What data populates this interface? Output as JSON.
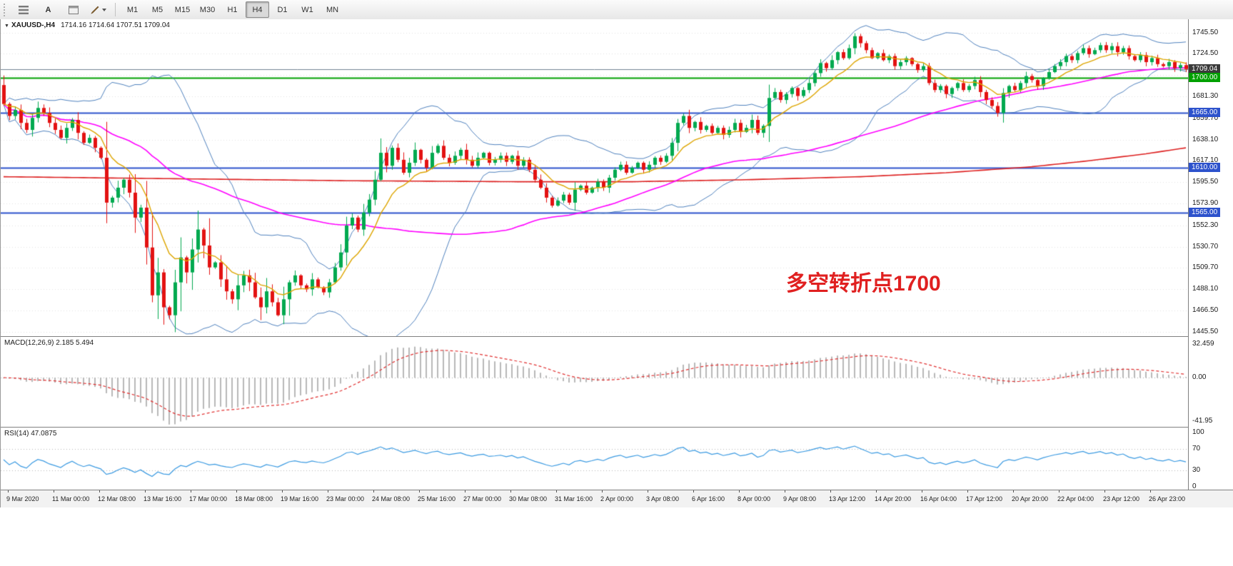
{
  "toolbar": {
    "cursor_label": "A",
    "timeframes": [
      "M1",
      "M5",
      "M15",
      "M30",
      "H1",
      "H4",
      "D1",
      "W1",
      "MN"
    ],
    "active_timeframe": "H4"
  },
  "chart": {
    "symbol_caret": "▼",
    "symbol": "XAUUSD-,H4",
    "ohlc": "1714.16 1714.64 1707.51 1709.04",
    "annotation": {
      "text": "多空转折点1700",
      "color": "#e02020"
    },
    "price_axis": {
      "labels": [
        "1745.50",
        "1724.50",
        "1702.90",
        "1681.30",
        "1659.70",
        "1638.10",
        "1617.10",
        "1595.50",
        "1573.90",
        "1552.30",
        "1530.70",
        "1509.70",
        "1488.10",
        "1466.50",
        "1445.50"
      ]
    },
    "tags": [
      {
        "text": "1709.04",
        "price": 1709.04,
        "bg": "#3a3a3a"
      },
      {
        "text": "1700.00",
        "price": 1700.0,
        "bg": "#00a000"
      },
      {
        "text": "1665.00",
        "price": 1665.0,
        "bg": "#2d52cc"
      },
      {
        "text": "1610.00",
        "price": 1610.0,
        "bg": "#2d52cc"
      },
      {
        "text": "1565.00",
        "price": 1565.0,
        "bg": "#2d52cc"
      }
    ],
    "hlines": [
      {
        "price": 1709.04,
        "color": "#708090",
        "width": 1
      },
      {
        "price": 1700.0,
        "color": "#00a000",
        "width": 2
      },
      {
        "price": 1665.0,
        "color": "#2d52cc",
        "width": 2
      },
      {
        "price": 1610.0,
        "color": "#2d52cc",
        "width": 2
      },
      {
        "price": 1565.0,
        "color": "#2d52cc",
        "width": 2
      }
    ],
    "grid_color": "#e3e3e3"
  },
  "macd": {
    "label": "MACD(12,26,9) 2.185 5.494",
    "axis": [
      "32.459",
      "0.00",
      "-41.95"
    ],
    "axis_values": [
      32.459,
      0,
      -41.95
    ],
    "hist_color": "#b8b8b8",
    "signal_color": "#e03030"
  },
  "rsi": {
    "label": "RSI(14) 47.0875",
    "axis": [
      "100",
      "70",
      "30",
      "0"
    ],
    "axis_values": [
      100,
      70,
      30,
      0
    ],
    "levels": [
      70,
      30
    ],
    "line_color": "#3b9ae1"
  },
  "time_axis": {
    "labels": [
      "9 Mar 2020",
      "11 Mar 00:00",
      "12 Mar 08:00",
      "13 Mar 16:00",
      "17 Mar 00:00",
      "18 Mar 08:00",
      "19 Mar 16:00",
      "23 Mar 00:00",
      "24 Mar 08:00",
      "25 Mar 16:00",
      "27 Mar 00:00",
      "30 Mar 08:00",
      "31 Mar 16:00",
      "2 Apr 00:00",
      "3 Apr 08:00",
      "6 Apr 16:00",
      "8 Apr 00:00",
      "9 Apr 08:00",
      "13 Apr 12:00",
      "14 Apr 20:00",
      "16 Apr 04:00",
      "17 Apr 12:00",
      "20 Apr 20:00",
      "22 Apr 04:00",
      "23 Apr 12:00",
      "26 Apr 23:00"
    ]
  },
  "chart_data": {
    "type": "candlestick",
    "symbol": "XAUUSD",
    "timeframe": "H4",
    "price_range": [
      1441,
      1759
    ],
    "first_open": 1693,
    "up_color": "#00a94f",
    "down_color": "#e31212",
    "wick_boost": [
      [
        17,
        24,
        1.5
      ],
      [
        25,
        52,
        2.2
      ]
    ],
    "closes": [
      1674,
      1662,
      1668,
      1655,
      1648,
      1660,
      1670,
      1665,
      1655,
      1648,
      1640,
      1650,
      1658,
      1645,
      1635,
      1640,
      1630,
      1620,
      1575,
      1580,
      1590,
      1598,
      1585,
      1560,
      1570,
      1530,
      1482,
      1505,
      1470,
      1462,
      1495,
      1520,
      1505,
      1528,
      1548,
      1532,
      1510,
      1515,
      1498,
      1486,
      1478,
      1492,
      1502,
      1495,
      1480,
      1470,
      1486,
      1475,
      1462,
      1478,
      1495,
      1502,
      1492,
      1488,
      1498,
      1490,
      1485,
      1495,
      1510,
      1525,
      1552,
      1560,
      1548,
      1565,
      1578,
      1598,
      1625,
      1612,
      1630,
      1618,
      1605,
      1615,
      1628,
      1618,
      1610,
      1625,
      1632,
      1620,
      1615,
      1622,
      1628,
      1618,
      1612,
      1620,
      1625,
      1615,
      1618,
      1622,
      1616,
      1622,
      1612,
      1618,
      1608,
      1598,
      1590,
      1580,
      1572,
      1577,
      1583,
      1575,
      1588,
      1592,
      1585,
      1590,
      1596,
      1590,
      1600,
      1608,
      1613,
      1605,
      1610,
      1615,
      1608,
      1613,
      1620,
      1616,
      1622,
      1635,
      1655,
      1662,
      1650,
      1656,
      1648,
      1652,
      1645,
      1650,
      1643,
      1648,
      1655,
      1646,
      1650,
      1658,
      1645,
      1652,
      1680,
      1686,
      1678,
      1684,
      1690,
      1682,
      1688,
      1695,
      1705,
      1715,
      1710,
      1718,
      1726,
      1720,
      1730,
      1742,
      1735,
      1728,
      1720,
      1725,
      1718,
      1722,
      1712,
      1716,
      1720,
      1714,
      1708,
      1712,
      1695,
      1688,
      1692,
      1684,
      1690,
      1695,
      1688,
      1692,
      1698,
      1686,
      1678,
      1672,
      1665,
      1685,
      1692,
      1688,
      1695,
      1702,
      1698,
      1692,
      1700,
      1706,
      1712,
      1716,
      1722,
      1718,
      1725,
      1730,
      1724,
      1728,
      1733,
      1728,
      1732,
      1726,
      1730,
      1722,
      1718,
      1723,
      1716,
      1720,
      1714,
      1712,
      1716,
      1710,
      1713,
      1709.04
    ],
    "overlays": {
      "bollinger": {
        "period": 20,
        "deviation": 2,
        "color": "#4f81bd"
      },
      "ema_fast": {
        "period": 10,
        "color": "#dda500"
      },
      "sma_mid": {
        "period": 64,
        "color": "#ff00ff"
      },
      "sma_slow": {
        "color": "#dd2020",
        "path": [
          [
            0,
            1601
          ],
          [
            30,
            1599
          ],
          [
            60,
            1597
          ],
          [
            90,
            1596
          ],
          [
            110,
            1596
          ],
          [
            130,
            1598
          ],
          [
            150,
            1601
          ],
          [
            165,
            1605
          ],
          [
            180,
            1611
          ],
          [
            190,
            1617
          ],
          [
            200,
            1624
          ],
          [
            207,
            1630
          ]
        ]
      }
    }
  }
}
